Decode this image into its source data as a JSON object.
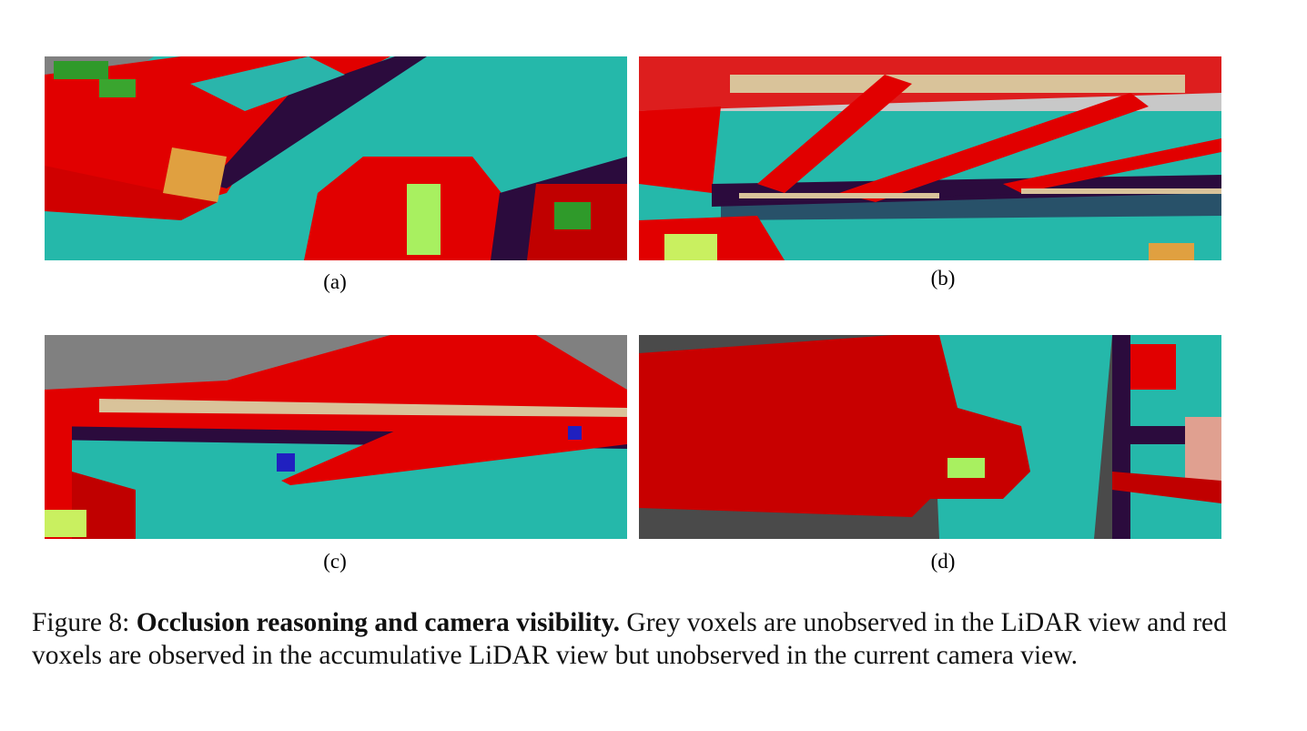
{
  "figure": {
    "panels": [
      {
        "label": "(a)"
      },
      {
        "label": "(b)"
      },
      {
        "label": "(c)"
      },
      {
        "label": "(d)"
      }
    ],
    "caption": {
      "label": "Figure 8:",
      "title": "Occlusion reasoning and camera visibility.",
      "text": "Grey voxels are unobserved in the LiDAR view and red voxels are observed in the accumulative LiDAR view but unobserved in the current camera view."
    }
  }
}
